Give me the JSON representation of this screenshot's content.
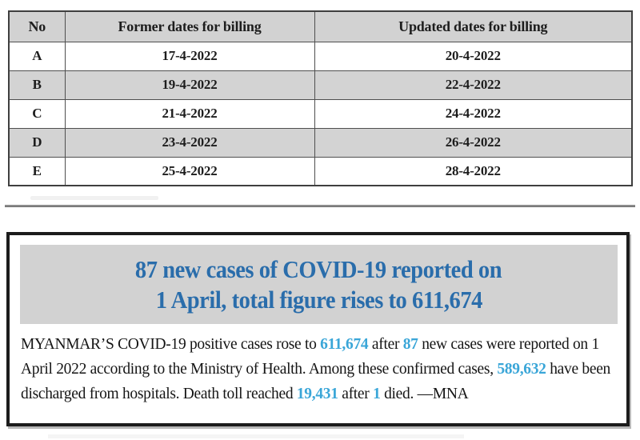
{
  "table": {
    "columns": [
      "No",
      "Former dates for billing",
      "Updated dates for billing"
    ],
    "rows": [
      {
        "no": "A",
        "former": "17-4-2022",
        "updated": "20-4-2022"
      },
      {
        "no": "B",
        "former": "19-4-2022",
        "updated": "22-4-2022"
      },
      {
        "no": "C",
        "former": "21-4-2022",
        "updated": "24-4-2022"
      },
      {
        "no": "D",
        "former": "23-4-2022",
        "updated": "26-4-2022"
      },
      {
        "no": "E",
        "former": "25-4-2022",
        "updated": "28-4-2022"
      }
    ],
    "header_bg": "#d2d2d2",
    "alt_row_bg": "#d3d3d3"
  },
  "article": {
    "headline_line1": "87 new cases of COVID-19 reported on",
    "headline_line2": "1 April, total figure rises to 611,674",
    "headline_color": "#2a6dab",
    "banner_bg": "#d2d2d2",
    "highlight_color": "#3aa6d8",
    "byline": "—MNA",
    "body_segments": [
      {
        "text": "MYANMAR’S COVID-19 positive cases rose to ",
        "highlight": false
      },
      {
        "text": "611,674",
        "highlight": true
      },
      {
        "text": " after ",
        "highlight": false
      },
      {
        "text": "87",
        "highlight": true
      },
      {
        "text": " new cases were reported on 1 April 2022 according to the Ministry of Health. Among these confirmed cases, ",
        "highlight": false
      },
      {
        "text": "589,632",
        "highlight": true
      },
      {
        "text": " have been discharged from hospitals. Death toll reached ",
        "highlight": false
      },
      {
        "text": "19,431",
        "highlight": true
      },
      {
        "text": " after ",
        "highlight": false
      },
      {
        "text": "1",
        "highlight": true
      },
      {
        "text": " died. —MNA",
        "highlight": false
      }
    ]
  }
}
